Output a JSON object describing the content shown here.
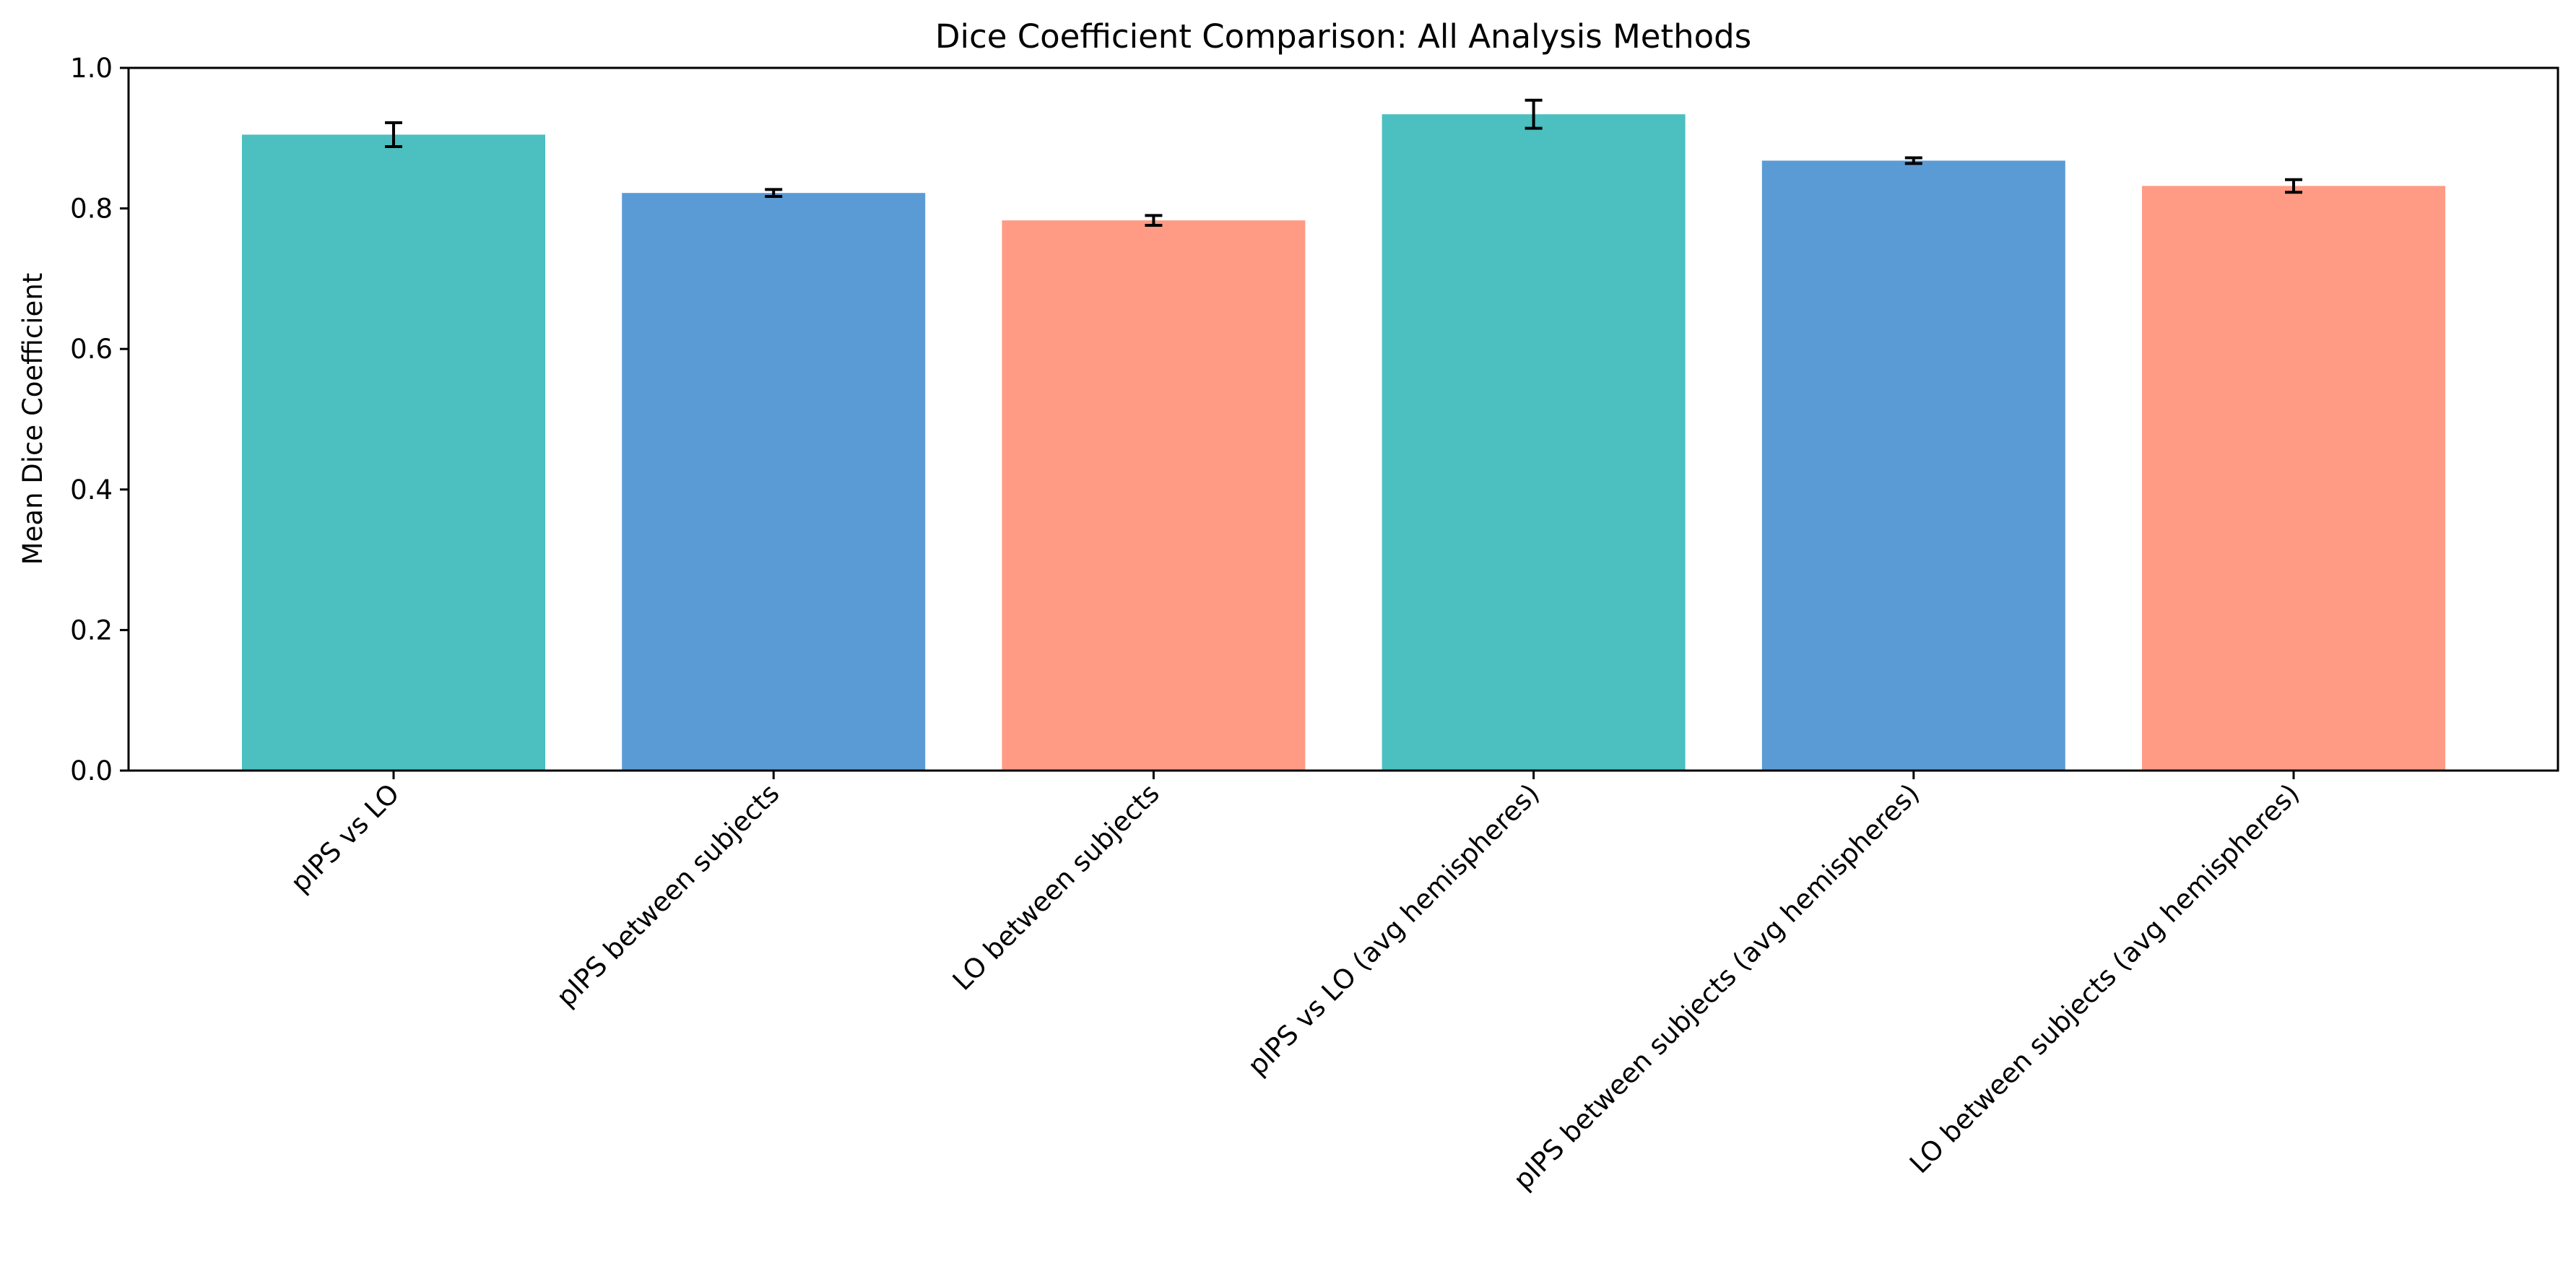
{
  "chart_data": {
    "type": "bar",
    "title": "Dice Coefficient Comparison: All Analysis Methods",
    "xlabel": "",
    "ylabel": "Mean Dice Coefficient",
    "ylim": [
      0,
      1.0
    ],
    "yticks": [
      "0.0",
      "0.2",
      "0.4",
      "0.6",
      "0.8",
      "1.0"
    ],
    "grid": false,
    "legend": "none",
    "categories": [
      "pIPS vs LO",
      "pIPS between subjects",
      "LO between subjects",
      "pIPS vs LO (avg hemispheres)",
      "pIPS between subjects (avg hemispheres)",
      "LO between subjects (avg hemispheres)"
    ],
    "values": [
      0.905,
      0.822,
      0.783,
      0.934,
      0.868,
      0.832
    ],
    "errors": [
      0.017,
      0.005,
      0.007,
      0.02,
      0.004,
      0.009
    ],
    "colors": [
      "#4CBFC0",
      "#5B9BD5",
      "#FF9B85",
      "#4CBFC0",
      "#5B9BD5",
      "#FF9B85"
    ]
  }
}
